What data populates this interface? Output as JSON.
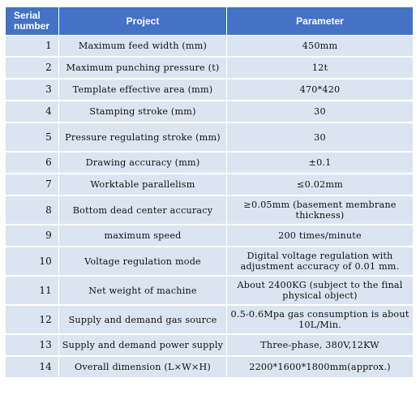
{
  "header": {
    "serial": "Serial number",
    "project": "Project",
    "parameter": "Parameter"
  },
  "rows": [
    {
      "n": "1",
      "project": "Maximum feed width (mm)",
      "parameter": "450mm"
    },
    {
      "n": "2",
      "project": "Maximum punching pressure (t)",
      "parameter": "12t"
    },
    {
      "n": "3",
      "project": "Template effective area (mm)",
      "parameter": "470*420"
    },
    {
      "n": "4",
      "project": "Stamping stroke (mm)",
      "parameter": "30"
    },
    {
      "n": "5",
      "project": "Pressure regulating stroke (mm)",
      "parameter": "30"
    },
    {
      "n": "6",
      "project": "Drawing accuracy (mm)",
      "parameter": "±0.1"
    },
    {
      "n": "7",
      "project": "Worktable parallelism",
      "parameter": "≤0.02mm"
    },
    {
      "n": "8",
      "project": "Bottom dead center accuracy",
      "parameter": "≥0.05mm (basement membrane thickness)"
    },
    {
      "n": "9",
      "project": "maximum speed",
      "parameter": "200 times/minute"
    },
    {
      "n": "10",
      "project": "Voltage regulation mode",
      "parameter": "Digital voltage regulation with adjustment accuracy of 0.01 mm."
    },
    {
      "n": "11",
      "project": "Net weight of machine",
      "parameter": "About 2400KG (subject to the final physical object)"
    },
    {
      "n": "12",
      "project": "Supply and demand gas source",
      "parameter": "0.5-0.6Mpa gas consumption is about 10L/Min."
    },
    {
      "n": "13",
      "project": "Supply and demand power supply",
      "parameter": "Three-phase, 380V,12KW"
    },
    {
      "n": "14",
      "project": "Overall dimension (L×W×H)",
      "parameter": "2200*1600*1800mm(approx.)"
    }
  ],
  "colors": {
    "header": "#4472c4",
    "row": "#dbe5f1"
  }
}
